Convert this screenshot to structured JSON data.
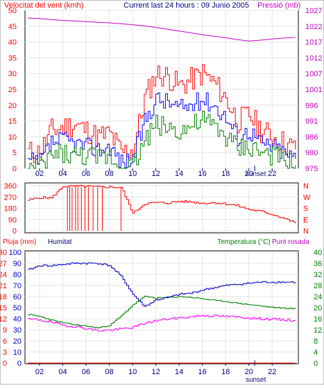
{
  "header": {
    "wind_label": "Velocitat del vent (kmh)",
    "current_label": "Current last 24 hours : 09 Junio 2005",
    "pressure_label": "Pressió (mb)"
  },
  "x_ticks": [
    "02",
    "04",
    "06",
    "08",
    "10",
    "12",
    "14",
    "16",
    "18",
    "20",
    "22"
  ],
  "sunset_label": "sunset",
  "chart_data": [
    {
      "type": "line",
      "name": "wind-pressure",
      "x_hours": [
        0,
        1,
        2,
        3,
        4,
        5,
        6,
        7,
        8,
        9,
        10,
        11,
        12,
        13,
        14,
        15,
        16,
        17,
        18,
        19,
        20,
        21,
        22,
        23
      ],
      "left_axis": {
        "ticks": [
          0,
          5,
          10,
          15,
          20,
          25,
          30,
          35,
          40,
          45,
          50
        ],
        "ylim": [
          0,
          50
        ]
      },
      "right_axis": {
        "ticks": [
          975,
          980,
          986,
          991,
          996,
          1001,
          1007,
          1012,
          1017,
          1022,
          1027
        ],
        "ylim": [
          975,
          1027
        ]
      },
      "gust": [
        5,
        5,
        12,
        13,
        14,
        12,
        10,
        11,
        5,
        6,
        22,
        30,
        29,
        26,
        28,
        30,
        27,
        22,
        15,
        17,
        12,
        10,
        8,
        6
      ],
      "average": [
        2,
        2,
        8,
        9,
        8,
        7,
        6,
        7,
        2,
        3,
        15,
        22,
        21,
        19,
        20,
        22,
        20,
        16,
        10,
        12,
        8,
        7,
        5,
        3
      ],
      "minimum": [
        0,
        0,
        4,
        5,
        4,
        4,
        3,
        4,
        0,
        1,
        9,
        14,
        13,
        12,
        13,
        15,
        13,
        10,
        6,
        7,
        5,
        4,
        2,
        1
      ],
      "pressure": [
        1024.5,
        1024.3,
        1024.0,
        1023.7,
        1023.5,
        1023.3,
        1023.1,
        1022.9,
        1022.6,
        1022.3,
        1021.9,
        1021.4,
        1020.8,
        1020.2,
        1019.6,
        1019.0,
        1018.5,
        1018.0,
        1017.4,
        1016.9,
        1017.2,
        1017.6,
        1017.9,
        1018.1
      ]
    },
    {
      "type": "line",
      "name": "wind-direction",
      "x_hours": [
        0,
        1,
        2,
        3,
        4,
        5,
        6,
        7,
        8,
        9,
        10,
        11,
        12,
        13,
        14,
        15,
        16,
        17,
        18,
        19,
        20,
        21,
        22,
        23
      ],
      "left_axis": {
        "ticks": [
          0,
          90,
          180,
          270,
          360
        ],
        "ylim": [
          0,
          360
        ]
      },
      "right_axis": {
        "ticks": [
          "N",
          "W",
          "S",
          "E",
          "N"
        ]
      },
      "direction": [
        245,
        265,
        262,
        355,
        355,
        355,
        350,
        350,
        345,
        140,
        215,
        225,
        222,
        235,
        230,
        220,
        225,
        215,
        200,
        170,
        155,
        130,
        100,
        60
      ]
    },
    {
      "type": "line",
      "name": "rain-humidity-temperature",
      "x_hours": [
        0,
        1,
        2,
        3,
        4,
        5,
        6,
        7,
        8,
        9,
        10,
        11,
        12,
        13,
        14,
        15,
        16,
        17,
        18,
        19,
        20,
        21,
        22,
        23
      ],
      "series_labels": {
        "rain": "Pluja (mm)",
        "humidity": "Humitat",
        "temperature": "Temperatura (°C)",
        "dewpoint": "Punt rosada"
      },
      "rain_axis": {
        "ticks": [
          0,
          3,
          6,
          9,
          12,
          15,
          18,
          21,
          24,
          27,
          30
        ],
        "ylim": [
          0,
          30
        ]
      },
      "humidity_axis": {
        "ticks": [
          0,
          10,
          20,
          30,
          40,
          50,
          60,
          70,
          80,
          90,
          100
        ],
        "ylim": [
          0,
          100
        ]
      },
      "temperature_axis": {
        "ticks": [
          0,
          4,
          8,
          12,
          16,
          20,
          24,
          28,
          32,
          36,
          40
        ],
        "ylim": [
          0,
          40
        ]
      },
      "rain": [
        0,
        0,
        0,
        0,
        0,
        0,
        0,
        0,
        0,
        0,
        0,
        0,
        0,
        0,
        0,
        0,
        0,
        0,
        0,
        0,
        0,
        0,
        0,
        0
      ],
      "humidity": [
        84,
        88,
        88,
        89,
        90,
        90,
        90,
        88,
        78,
        62,
        51,
        57,
        59,
        62,
        63,
        66,
        68,
        70,
        71,
        72,
        73,
        73,
        73,
        73
      ],
      "temperature": [
        17.5,
        16.8,
        15.5,
        14.5,
        13.8,
        13.3,
        12.7,
        13.6,
        17.0,
        21.0,
        24.0,
        23.5,
        23.6,
        24.0,
        23.7,
        23.2,
        22.6,
        22.2,
        21.6,
        21.1,
        20.6,
        20.1,
        19.8,
        19.5
      ],
      "dewpoint": [
        15.8,
        15.6,
        14.7,
        13.6,
        13.2,
        12.5,
        11.7,
        11.9,
        12.3,
        12.9,
        14.4,
        15.3,
        15.9,
        16.3,
        16.7,
        17.2,
        17.0,
        16.8,
        16.6,
        16.3,
        16.0,
        15.8,
        15.6,
        15.3
      ]
    }
  ]
}
